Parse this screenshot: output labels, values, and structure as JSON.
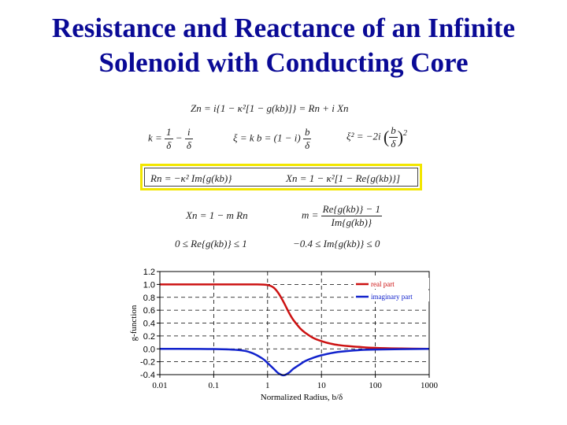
{
  "slide": {
    "title_line1": "Resistance and Reactance of an Infinite",
    "title_line2": "Solenoid with Conducting Core"
  },
  "equations": {
    "zn": "Zn = i{1 − κ²[1 − g(kb)]} = Rn + i Xn",
    "k_lhs": "k =",
    "k_frac1_num": "1",
    "k_frac1_den": "δ",
    "k_minus": "−",
    "k_frac2_num": "i",
    "k_frac2_den": "δ",
    "xi_lhs": "ξ = k b = (1 − i)",
    "xi_frac_num": "b",
    "xi_frac_den": "δ",
    "xi2_lhs": "ξ² = −2i",
    "xi2_frac_num": "b",
    "xi2_frac_den": "δ",
    "xi2_power": "2",
    "rn_boxed": "Rn = −κ² Im{g(kb)}",
    "xn_boxed": "Xn = 1 − κ²[1 − Re{g(kb)}]",
    "xn_m": "Xn = 1 − m Rn",
    "m_lhs": "m =",
    "m_num": "Re{g(kb)} − 1",
    "m_den": "Im{g(kb)}",
    "re_bound": "0 ≤ Re{g(kb)} ≤ 1",
    "im_bound": "−0.4 ≤ Im{g(kb)} ≤ 0"
  },
  "chart_data": {
    "type": "line",
    "xscale": "log",
    "xlim": [
      0.01,
      1000
    ],
    "ylim": [
      -0.4,
      1.2
    ],
    "xlabel": "Normalized Radius,  b/δ",
    "ylabel": "g-function",
    "x_ticks": [
      0.01,
      0.1,
      1,
      10,
      100,
      1000
    ],
    "x_tick_labels": [
      "0.01",
      "0.1",
      "1",
      "10",
      "100",
      "1000"
    ],
    "y_ticks": [
      -0.4,
      -0.2,
      0.0,
      0.2,
      0.4,
      0.6,
      0.8,
      1.0,
      1.2
    ],
    "y_tick_labels": [
      "-0.4",
      "-0.2",
      "0.0",
      "0.2",
      "0.4",
      "0.6",
      "0.8",
      "1.0",
      "1.2"
    ],
    "grid": "dashed",
    "legend_position": "top-right",
    "series": [
      {
        "name": "real part",
        "color": "#cc1111",
        "x": [
          0.01,
          0.05,
          0.1,
          0.3,
          0.6,
          1.0,
          1.3,
          1.6,
          2.0,
          2.5,
          3.0,
          4.0,
          5.0,
          7.0,
          10,
          15,
          20,
          30,
          50,
          100,
          300,
          1000
        ],
        "y": [
          1.0,
          1.0,
          1.0,
          1.0,
          1.0,
          0.99,
          0.95,
          0.86,
          0.72,
          0.56,
          0.45,
          0.32,
          0.25,
          0.17,
          0.12,
          0.08,
          0.06,
          0.045,
          0.03,
          0.015,
          0.005,
          0.0
        ]
      },
      {
        "name": "imaginary part",
        "color": "#1122cc",
        "x": [
          0.01,
          0.1,
          0.3,
          0.5,
          0.8,
          1.0,
          1.3,
          1.6,
          2.0,
          2.5,
          3.0,
          4.0,
          5.0,
          7.0,
          10,
          20,
          50,
          100,
          1000
        ],
        "y": [
          0.0,
          -0.003,
          -0.02,
          -0.06,
          -0.15,
          -0.22,
          -0.31,
          -0.38,
          -0.41,
          -0.37,
          -0.31,
          -0.24,
          -0.19,
          -0.14,
          -0.1,
          -0.05,
          -0.02,
          -0.01,
          0.0
        ]
      }
    ]
  }
}
